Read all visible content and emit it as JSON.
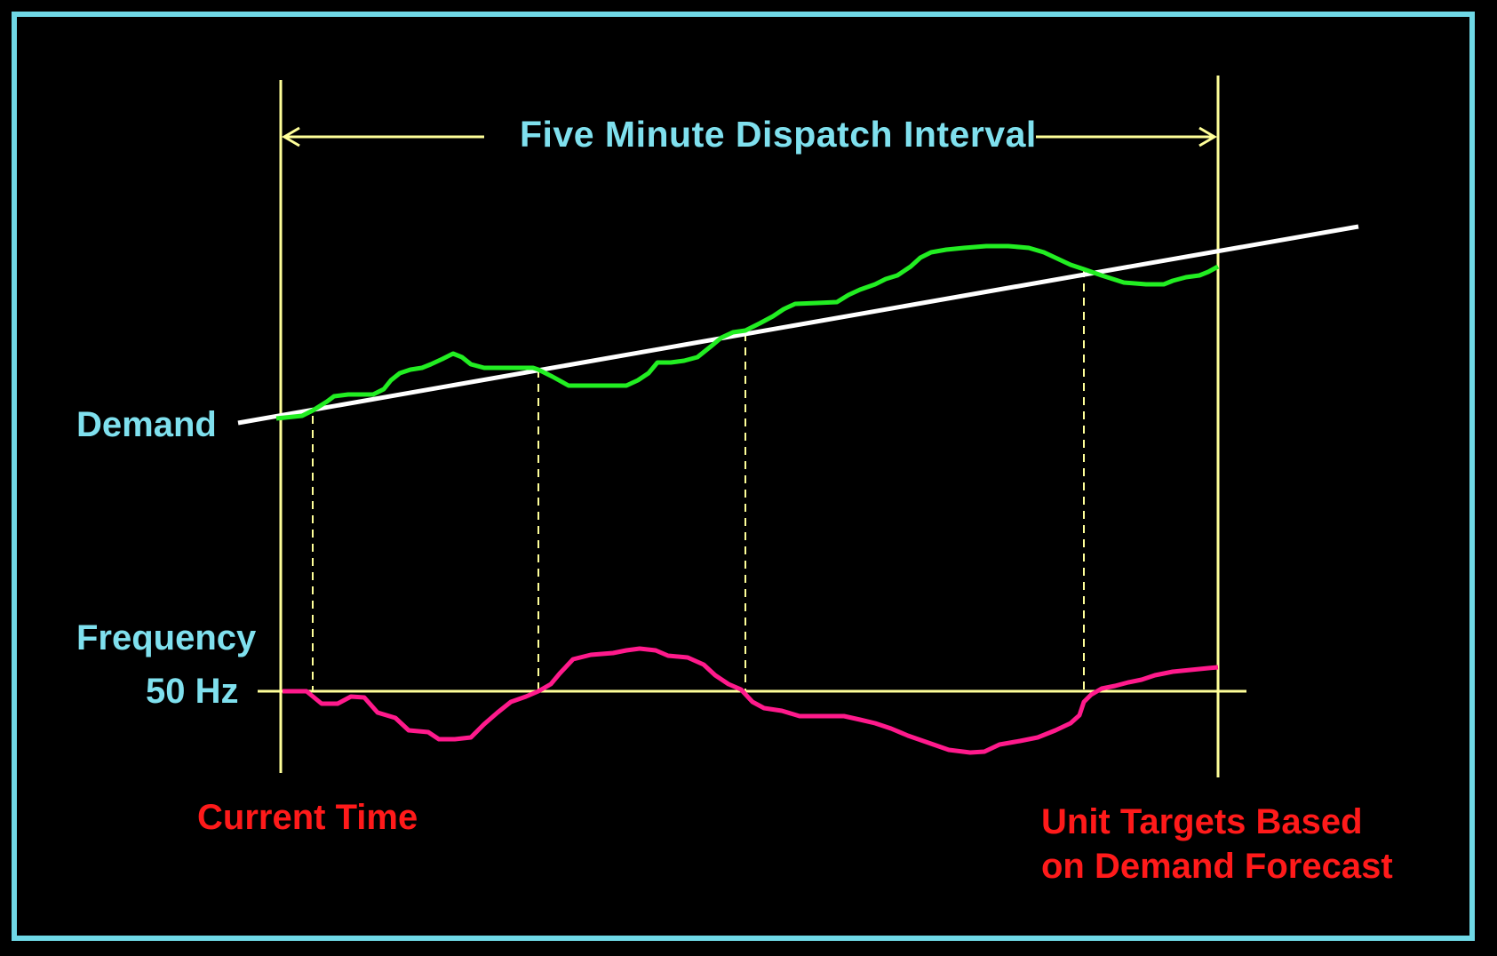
{
  "diagram": {
    "title": "Five Minute Dispatch Interval",
    "labels": {
      "demand": "Demand",
      "frequency": "Frequency",
      "nominal_frequency": "50 Hz",
      "current_time": "Current Time",
      "unit_targets_line1": "Unit Targets Based",
      "unit_targets_line2": "on Demand Forecast"
    },
    "colors": {
      "background": "#000000",
      "frame": "#6fd8e6",
      "label_text": "#7fe0ee",
      "annotation_text": "#ff1a1a",
      "interval_markers": "#ffff99",
      "forecast_line": "#ffffff",
      "actual_demand_line": "#22ee22",
      "frequency_line": "#ff1a8c"
    },
    "interval_arrow": "double-headed-arrow",
    "crossing_markers": 4
  }
}
